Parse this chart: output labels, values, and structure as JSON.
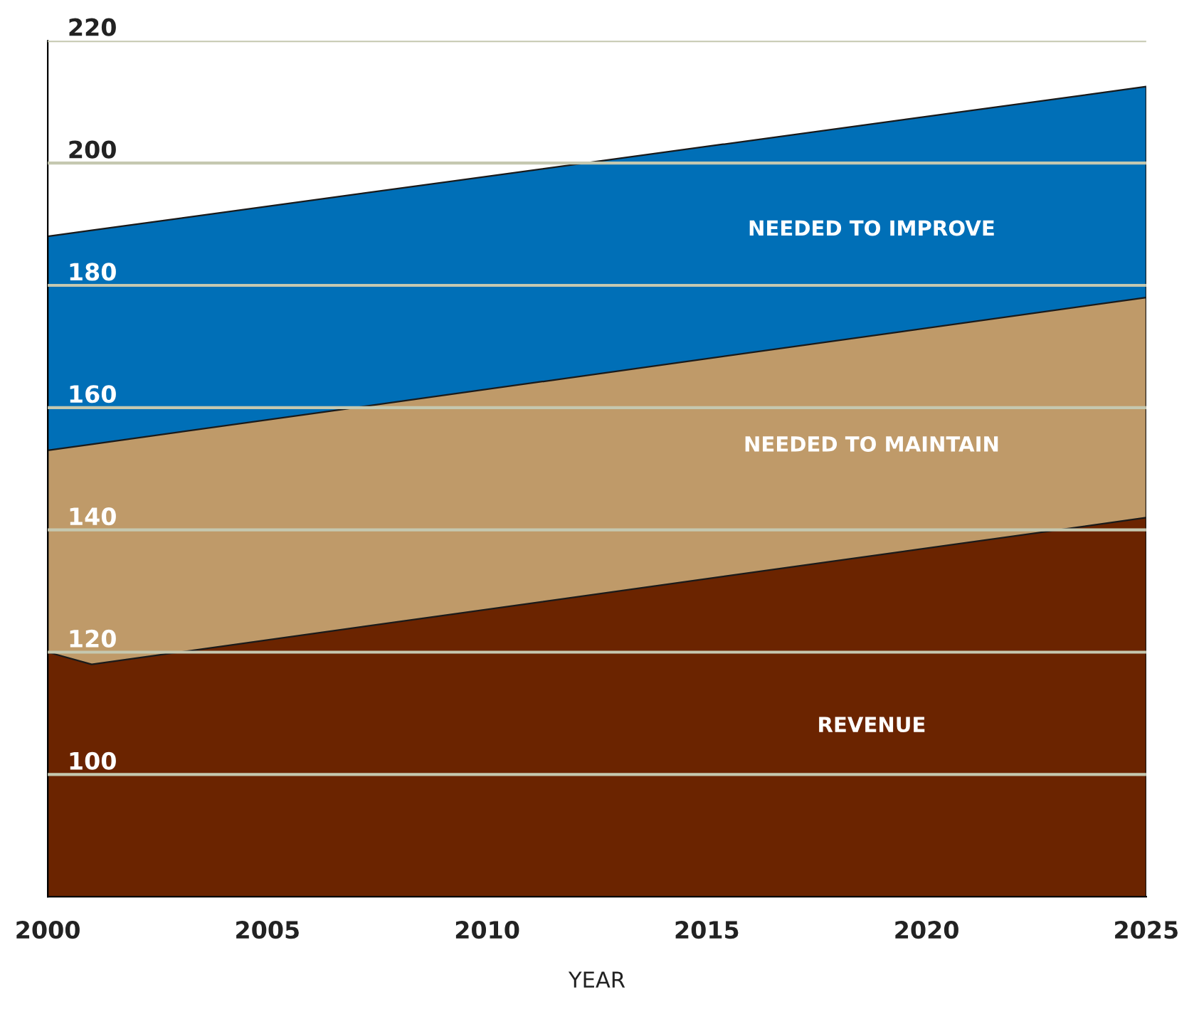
{
  "chart_data": {
    "type": "area",
    "xlabel": "YEAR",
    "x": [
      2000,
      2001,
      2025
    ],
    "series": [
      {
        "name": "REVENUE",
        "color": "#6b2400",
        "values": [
          120,
          118,
          142
        ]
      },
      {
        "name": "NEEDED TO MAINTAIN",
        "color": "#bf9a69",
        "values": [
          153,
          154,
          178
        ]
      },
      {
        "name": "NEEDED TO IMPROVE",
        "color": "#006fb7",
        "values": [
          188,
          189,
          212.5
        ]
      }
    ],
    "xlim": [
      2000,
      2025
    ],
    "xticks": [
      2000,
      2005,
      2010,
      2015,
      2020,
      2025
    ],
    "ylim": [
      80,
      220
    ],
    "yticks": [
      100,
      120,
      140,
      160,
      180,
      200,
      220
    ],
    "grid": "y",
    "legend": false
  }
}
